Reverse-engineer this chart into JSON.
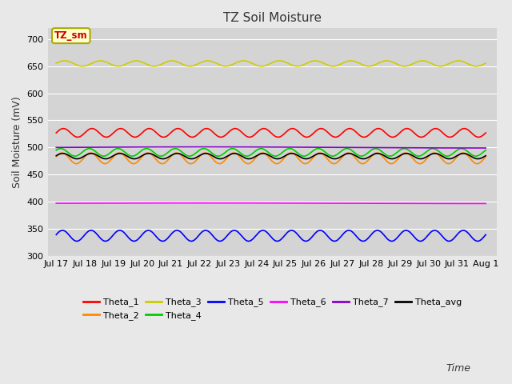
{
  "title": "TZ Soil Moisture",
  "ylabel": "Soil Moisture (mV)",
  "xlabel": "Time",
  "ylim": [
    300,
    720
  ],
  "yticks": [
    300,
    350,
    400,
    450,
    500,
    550,
    600,
    650,
    700
  ],
  "xtick_labels": [
    "Jul 17",
    "Jul 18",
    "Jul 19",
    "Jul 20",
    "Jul 21",
    "Jul 22",
    "Jul 23",
    "Jul 24",
    "Jul 25",
    "Jul 26",
    "Jul 27",
    "Jul 28",
    "Jul 29",
    "Jul 30",
    "Jul 31",
    "Aug 1"
  ],
  "n_points": 720,
  "series": {
    "Theta_1": {
      "color": "#ff0000",
      "base": 527,
      "amp": 8,
      "freq": 1.0,
      "phase": 0.0
    },
    "Theta_2": {
      "color": "#ff8800",
      "base": 480,
      "amp": 10,
      "freq": 1.0,
      "phase": 0.3
    },
    "Theta_3": {
      "color": "#cccc00",
      "base": 655,
      "amp": 5,
      "freq": 0.8,
      "phase": 0.1
    },
    "Theta_4": {
      "color": "#00cc00",
      "base": 491,
      "amp": 7,
      "freq": 1.0,
      "phase": 0.6
    },
    "Theta_5": {
      "color": "#0000ff",
      "base": 337,
      "amp": 10,
      "freq": 1.0,
      "phase": 0.2
    },
    "Theta_6": {
      "color": "#ff00ff",
      "base": 397,
      "amp": 0.5,
      "freq": 0.05,
      "phase": 0.0
    },
    "Theta_7": {
      "color": "#8800cc",
      "base": 500,
      "amp": 1.0,
      "freq": 0.05,
      "phase": 0.0
    },
    "Theta_avg": {
      "color": "#000000",
      "base": 484,
      "amp": 5,
      "freq": 1.0,
      "phase": 0.15
    }
  },
  "legend_label": "TZ_sm",
  "legend_facecolor": "#ffffcc",
  "legend_edgecolor": "#aaaa00",
  "legend_textcolor": "#cc0000",
  "bg_color": "#d4d4d4",
  "fig_facecolor": "#e8e8e8",
  "title_fontsize": 11,
  "axis_label_fontsize": 9,
  "tick_fontsize": 8,
  "linewidth": 1.2
}
